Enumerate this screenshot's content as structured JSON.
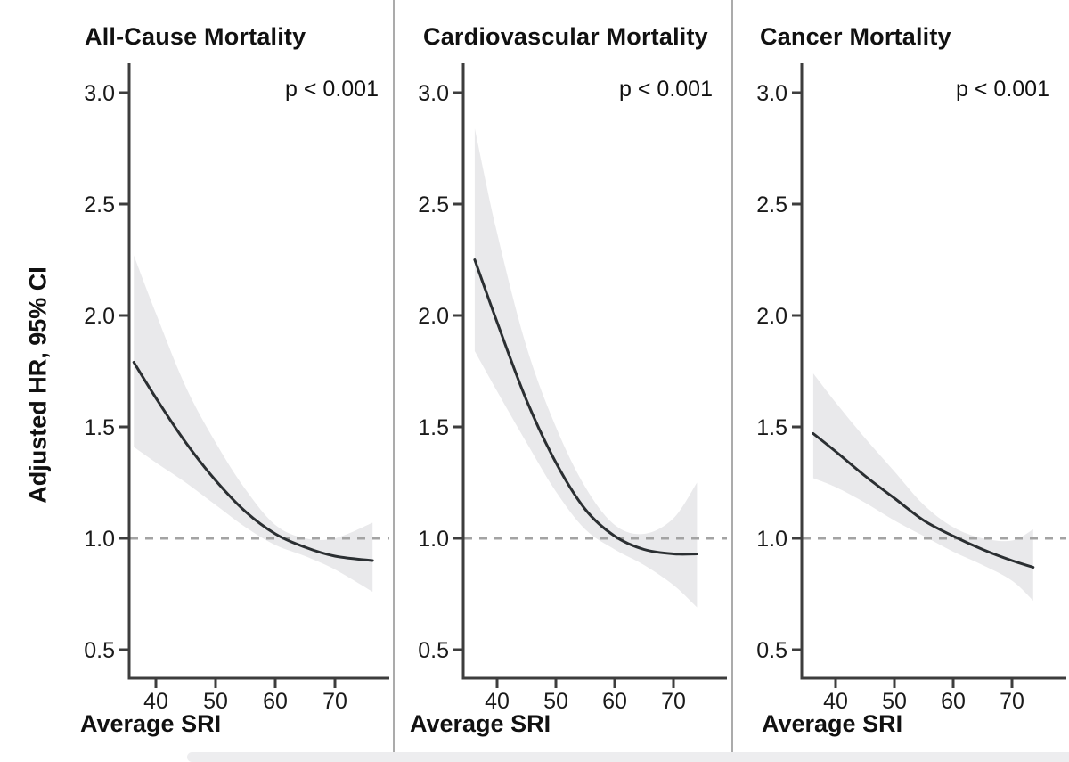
{
  "figure": {
    "y_axis_label": "Adjusted HR, 95% CI"
  },
  "colors": {
    "curve": "#2b2f32",
    "band": "#e9e9eb",
    "dashed_reference": "#a3a3a3",
    "axis": "#3d3d3d",
    "text": "#1a1a1a",
    "divider": "#ababab",
    "bottom_strip": "#ededef",
    "background": "#ffffff"
  },
  "chart_data": [
    {
      "type": "line",
      "title": "All-Cause Mortality",
      "annotation": "p < 0.001",
      "xlabel": "Average SRI",
      "ylabel": "Adjusted HR, 95% CI",
      "xlim": [
        35.5,
        79
      ],
      "ylim": [
        0.38,
        3.13
      ],
      "x_tick_values": [
        40,
        50,
        60,
        70
      ],
      "x_tick_labels": [
        "40",
        "50",
        "60",
        "70"
      ],
      "y_tick_values": [
        3.0,
        2.5,
        2.0,
        1.5,
        1.0,
        0.5
      ],
      "y_tick_labels": [
        "3.0",
        "2.5",
        "2.0",
        "1.5",
        "1.0",
        "0.5"
      ],
      "reference_line_y": 1.0,
      "grid": false,
      "legend": "none",
      "x": [
        36.3,
        40,
        45,
        50,
        55,
        60,
        65,
        70,
        76.3
      ],
      "series": [
        {
          "name": "adjusted_hr_fit",
          "values": [
            1.79,
            1.63,
            1.43,
            1.26,
            1.12,
            1.02,
            0.96,
            0.92,
            0.9
          ]
        },
        {
          "name": "ci_upper",
          "values": [
            2.27,
            2.01,
            1.68,
            1.43,
            1.22,
            1.06,
            1.0,
            1.0,
            1.07
          ]
        },
        {
          "name": "ci_lower",
          "values": [
            1.41,
            1.34,
            1.25,
            1.15,
            1.05,
            0.97,
            0.92,
            0.86,
            0.76
          ]
        }
      ]
    },
    {
      "type": "line",
      "title": "Cardiovascular Mortality",
      "annotation": "p < 0.001",
      "xlabel": "Average SRI",
      "ylabel": "Adjusted HR, 95% CI",
      "xlim": [
        34.2,
        78.6
      ],
      "ylim": [
        0.38,
        3.13
      ],
      "x_tick_values": [
        40,
        50,
        60,
        70
      ],
      "x_tick_labels": [
        "40",
        "50",
        "60",
        "70"
      ],
      "y_tick_values": [
        3.0,
        2.5,
        2.0,
        1.5,
        1.0,
        0.5
      ],
      "y_tick_labels": [
        "3.0",
        "2.5",
        "2.0",
        "1.5",
        "1.0",
        "0.5"
      ],
      "reference_line_y": 1.0,
      "grid": false,
      "legend": "none",
      "x": [
        36.2,
        40,
        45,
        50,
        55,
        60,
        65,
        70,
        74
      ],
      "series": [
        {
          "name": "adjusted_hr_fit",
          "values": [
            2.25,
            1.97,
            1.62,
            1.34,
            1.13,
            1.01,
            0.95,
            0.93,
            0.93
          ]
        },
        {
          "name": "ci_upper",
          "values": [
            2.84,
            2.37,
            1.86,
            1.5,
            1.23,
            1.06,
            1.02,
            1.09,
            1.25
          ]
        },
        {
          "name": "ci_lower",
          "values": [
            1.84,
            1.66,
            1.43,
            1.21,
            1.04,
            0.95,
            0.88,
            0.79,
            0.69
          ]
        }
      ]
    },
    {
      "type": "line",
      "title": "Cancer Mortality",
      "annotation": "p < 0.001",
      "xlabel": "Average SRI",
      "ylabel": "Adjusted HR, 95% CI",
      "xlim": [
        34.2,
        79
      ],
      "ylim": [
        0.38,
        3.13
      ],
      "x_tick_values": [
        40,
        50,
        60,
        70
      ],
      "x_tick_labels": [
        "40",
        "50",
        "60",
        "70"
      ],
      "y_tick_values": [
        3.0,
        2.5,
        2.0,
        1.5,
        1.0,
        0.5
      ],
      "y_tick_labels": [
        "3.0",
        "2.5",
        "2.0",
        "1.5",
        "1.0",
        "0.5"
      ],
      "reference_line_y": 1.0,
      "grid": false,
      "legend": "none",
      "x": [
        36.2,
        40,
        45,
        50,
        55,
        60,
        65,
        70,
        73.6
      ],
      "series": [
        {
          "name": "adjusted_hr_fit",
          "values": [
            1.47,
            1.39,
            1.28,
            1.18,
            1.08,
            1.01,
            0.95,
            0.9,
            0.87
          ]
        },
        {
          "name": "ci_upper",
          "values": [
            1.74,
            1.61,
            1.45,
            1.3,
            1.15,
            1.05,
            1.0,
            0.99,
            1.04
          ]
        },
        {
          "name": "ci_lower",
          "values": [
            1.27,
            1.23,
            1.16,
            1.08,
            1.01,
            0.94,
            0.88,
            0.81,
            0.72
          ]
        }
      ]
    }
  ]
}
